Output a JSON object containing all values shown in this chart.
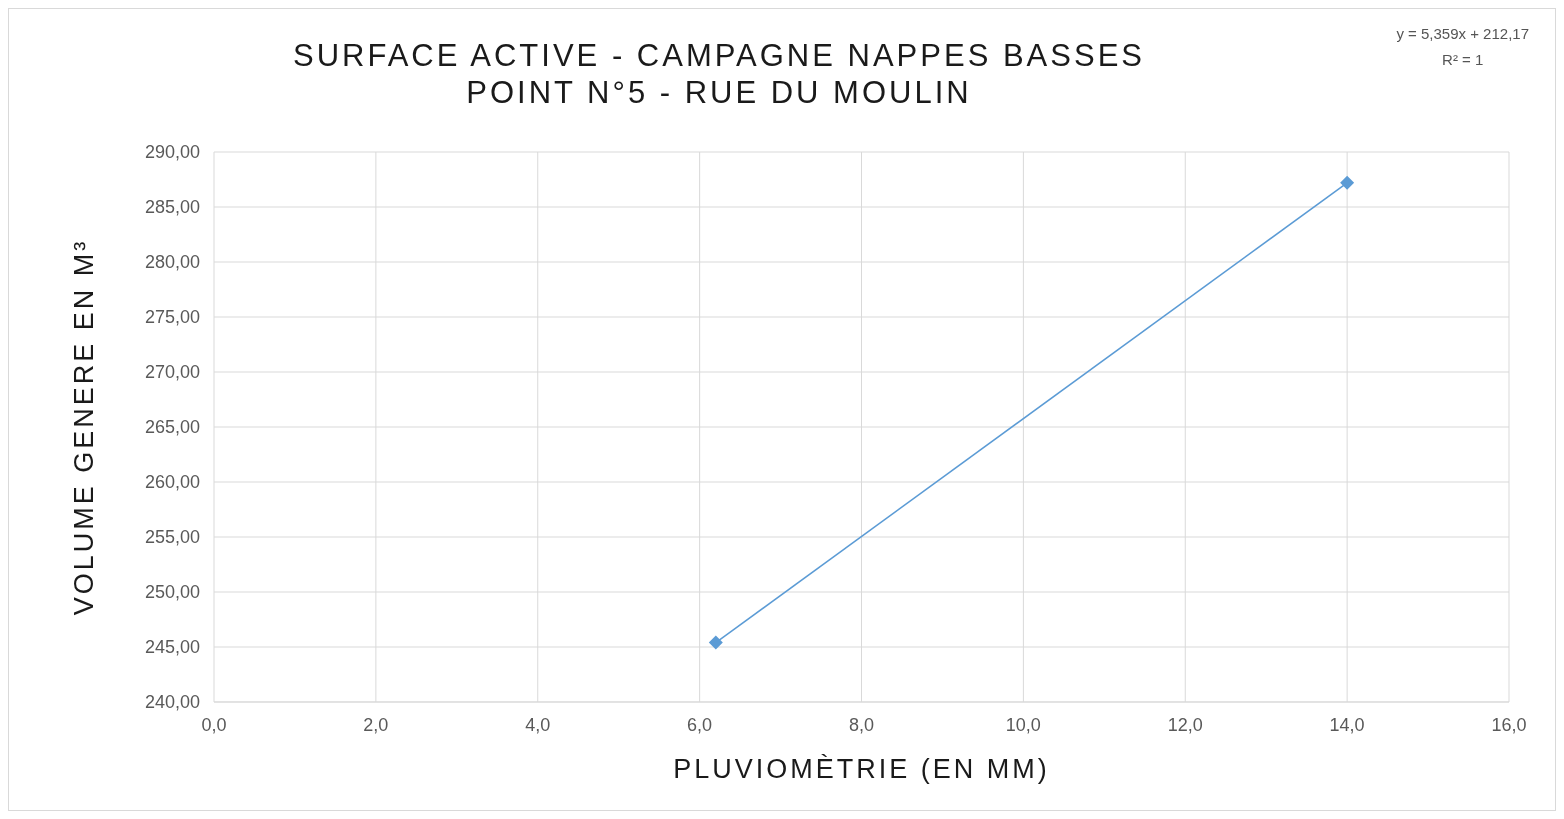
{
  "chart_data": {
    "type": "line",
    "title": "SURFACE ACTIVE - CAMPAGNE NAPPES BASSES\nPOINT N°5 - RUE DU MOULIN",
    "xlabel": "PLUVIOMÈTRIE (EN MM)",
    "ylabel": "VOLUME GENERE EN M³",
    "annotations": [
      "y = 5,359x + 212,17",
      "R² = 1"
    ],
    "series": [
      {
        "color": "#5b9bd5",
        "x": [
          6.2,
          14.0
        ],
        "values": [
          245.4,
          287.2
        ]
      }
    ],
    "xlim": [
      0,
      16
    ],
    "xticks": [
      {
        "value": 0,
        "label": "0,0"
      },
      {
        "value": 2,
        "label": "2,0"
      },
      {
        "value": 4,
        "label": "4,0"
      },
      {
        "value": 6,
        "label": "6,0"
      },
      {
        "value": 8,
        "label": "8,0"
      },
      {
        "value": 10,
        "label": "10,0"
      },
      {
        "value": 12,
        "label": "12,0"
      },
      {
        "value": 14,
        "label": "14,0"
      },
      {
        "value": 16,
        "label": "16,0"
      }
    ],
    "ylim": [
      240,
      290
    ],
    "yticks": [
      {
        "value": 240,
        "label": "240,00"
      },
      {
        "value": 245,
        "label": "245,00"
      },
      {
        "value": 250,
        "label": "250,00"
      },
      {
        "value": 255,
        "label": "255,00"
      },
      {
        "value": 260,
        "label": "260,00"
      },
      {
        "value": 265,
        "label": "265,00"
      },
      {
        "value": 270,
        "label": "270,00"
      },
      {
        "value": 275,
        "label": "275,00"
      },
      {
        "value": 280,
        "label": "280,00"
      },
      {
        "value": 285,
        "label": "285,00"
      },
      {
        "value": 290,
        "label": "290,00"
      }
    ],
    "grid": true,
    "marker": "diamond",
    "line_style": "solid"
  }
}
